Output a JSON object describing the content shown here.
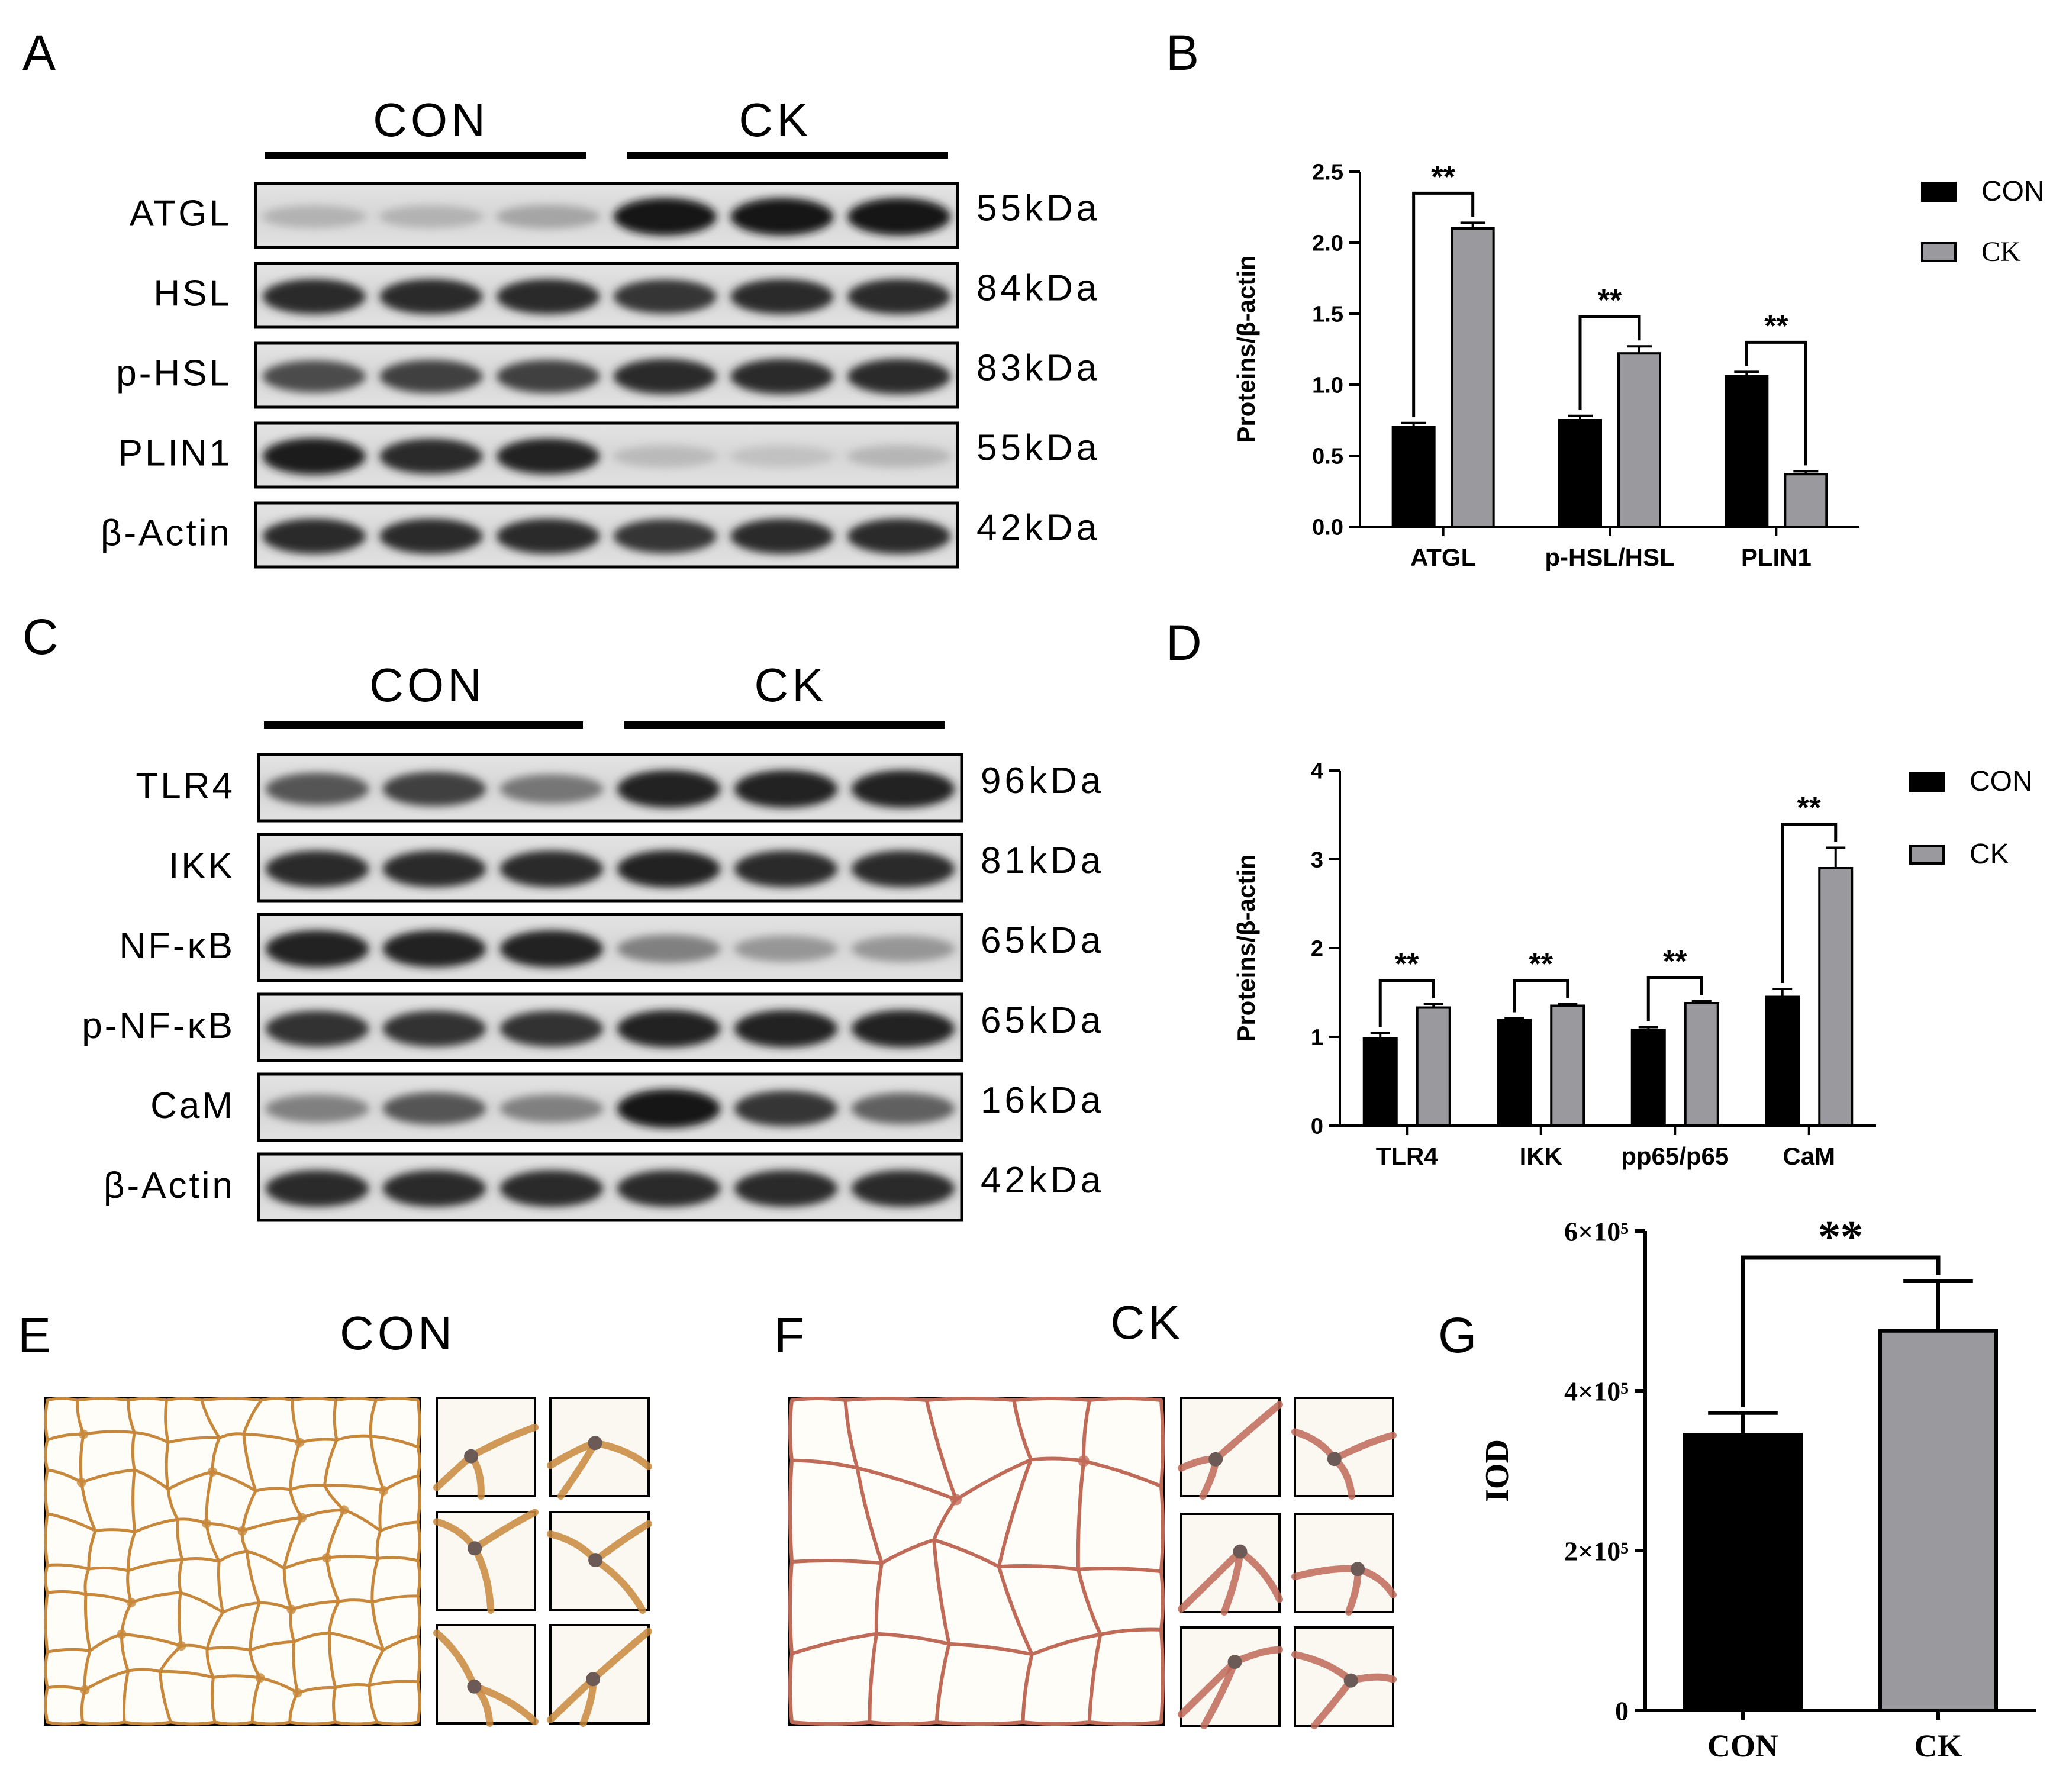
{
  "panel_letters": [
    "A",
    "B",
    "C",
    "D",
    "E",
    "F",
    "G"
  ],
  "panel_a": {
    "group_labels": [
      "CON",
      "CK"
    ],
    "rows": [
      {
        "protein": "ATGL",
        "size": "55kDa",
        "intensity": [
          0.22,
          0.22,
          0.28,
          0.95,
          0.95,
          0.95
        ]
      },
      {
        "protein": "HSL",
        "size": "84kDa",
        "intensity": [
          0.85,
          0.85,
          0.85,
          0.8,
          0.85,
          0.85
        ]
      },
      {
        "protein": "p-HSL",
        "size": "83kDa",
        "intensity": [
          0.7,
          0.75,
          0.75,
          0.85,
          0.85,
          0.85
        ]
      },
      {
        "protein": "PLIN1",
        "size": "55kDa",
        "intensity": [
          0.92,
          0.85,
          0.88,
          0.18,
          0.15,
          0.2
        ]
      },
      {
        "protein": "β-Actin",
        "size": "42kDa",
        "intensity": [
          0.85,
          0.85,
          0.85,
          0.8,
          0.85,
          0.85
        ]
      }
    ]
  },
  "panel_c": {
    "group_labels": [
      "CON",
      "CK"
    ],
    "rows": [
      {
        "protein": "TLR4",
        "size": "96kDa",
        "intensity": [
          0.65,
          0.75,
          0.5,
          0.9,
          0.9,
          0.9
        ]
      },
      {
        "protein": "IKK",
        "size": "81kDa",
        "intensity": [
          0.85,
          0.85,
          0.85,
          0.88,
          0.85,
          0.85
        ]
      },
      {
        "protein": "NF-κB",
        "size": "65kDa",
        "intensity": [
          0.88,
          0.88,
          0.88,
          0.45,
          0.35,
          0.35
        ]
      },
      {
        "protein": "p-NF-κB",
        "size": "65kDa",
        "intensity": [
          0.82,
          0.82,
          0.82,
          0.88,
          0.88,
          0.88
        ]
      },
      {
        "protein": "CaM",
        "size": "16kDa",
        "intensity": [
          0.45,
          0.65,
          0.45,
          0.95,
          0.8,
          0.6
        ]
      },
      {
        "protein": "β-Actin",
        "size": "42kDa",
        "intensity": [
          0.85,
          0.85,
          0.85,
          0.85,
          0.85,
          0.85
        ]
      }
    ]
  },
  "panel_e": {
    "title": "CON"
  },
  "panel_f": {
    "title": "CK"
  },
  "colors": {
    "con": "#000000",
    "ck": "#9a9a9e",
    "stain_con": "#c8883c",
    "stain_ck": "#c06a58"
  },
  "chart_data": [
    {
      "panel": "B",
      "type": "bar",
      "categories": [
        "ATGL",
        "p-HSL/HSL",
        "PLIN1"
      ],
      "ylabel": "Proteins/β-actin",
      "ylim": [
        0,
        2.5
      ],
      "yticks": [
        "0.0",
        "0.5",
        "1.0",
        "1.5",
        "2.0",
        "2.5"
      ],
      "series": [
        {
          "name": "CON",
          "values": [
            0.7,
            0.75,
            1.06
          ],
          "errors": [
            0.03,
            0.03,
            0.03
          ]
        },
        {
          "name": "CK",
          "values": [
            2.1,
            1.22,
            0.37
          ],
          "errors": [
            0.04,
            0.05,
            0.02
          ]
        }
      ],
      "significance": [
        "**",
        "**",
        "**"
      ],
      "legend": "top-right"
    },
    {
      "panel": "D",
      "type": "bar",
      "categories": [
        "TLR4",
        "IKK",
        "pp65/p65",
        "CaM"
      ],
      "ylabel": "Proteins/β-actin",
      "ylim": [
        0,
        4
      ],
      "yticks": [
        "0",
        "1",
        "2",
        "3",
        "4"
      ],
      "series": [
        {
          "name": "CON",
          "values": [
            0.98,
            1.19,
            1.08,
            1.45
          ],
          "errors": [
            0.06,
            0.02,
            0.03,
            0.09
          ]
        },
        {
          "name": "CK",
          "values": [
            1.33,
            1.35,
            1.38,
            2.9
          ],
          "errors": [
            0.04,
            0.02,
            0.02,
            0.23
          ]
        }
      ],
      "significance": [
        "**",
        "**",
        "**",
        "**"
      ],
      "legend": "top-right"
    },
    {
      "panel": "G",
      "type": "bar",
      "categories": [
        "CON",
        "CK"
      ],
      "ylabel": "IOD",
      "ylim": [
        0,
        600000
      ],
      "yticks": [
        "0",
        "2×10⁵",
        "4×10⁵",
        "6×10⁵"
      ],
      "values": [
        345000,
        475000
      ],
      "errors": [
        27000,
        62000
      ],
      "significance": "**"
    }
  ]
}
